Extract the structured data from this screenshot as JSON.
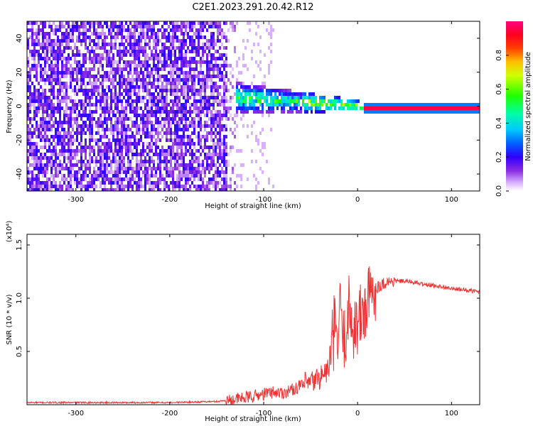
{
  "figure": {
    "title": "C2E1.2023.291.20.42.R12"
  },
  "chart_data": [
    {
      "type": "heatmap",
      "panel": "top",
      "xlabel": "Height of straight line (km)",
      "ylabel": "Frequency (Hz)",
      "xlim": [
        -352,
        130
      ],
      "ylim": [
        -50,
        50
      ],
      "x_ticks": [
        -300,
        -200,
        -100,
        0,
        100
      ],
      "y_ticks": [
        -40,
        -20,
        0,
        20,
        40
      ],
      "grid": false,
      "colorbar": {
        "label": "Normalized spectral amplitude",
        "range": [
          0,
          1
        ],
        "ticks": [
          0.0,
          0.2,
          0.4,
          0.6,
          0.8
        ],
        "colormap": [
          "#ffffff",
          "#a060ff",
          "#6000e0",
          "#0000ff",
          "#00c0ff",
          "#00ff80",
          "#40ff00",
          "#ffff00",
          "#ff8000",
          "#ff0000",
          "#ff0080"
        ]
      },
      "description_regions": [
        {
          "x_range": [
            -352,
            -140
          ],
          "freq_range": [
            -50,
            50
          ],
          "amplitude": 0.12
        },
        {
          "x_range": [
            -140,
            -20
          ],
          "freq_range": [
            -6,
            14
          ],
          "amplitude": 0.35
        },
        {
          "x_range": [
            -20,
            130
          ],
          "freq_range": [
            -1,
            1
          ],
          "amplitude": 0.9
        }
      ]
    },
    {
      "type": "line",
      "panel": "bottom",
      "xlabel": "Height of straight line (km)",
      "ylabel": "SNR (10 * v/v)",
      "y_multiplier": "(x10⁴)",
      "xlim": [
        -352,
        130
      ],
      "ylim": [
        0,
        1.6
      ],
      "x_ticks": [
        -300,
        -200,
        -100,
        0,
        100
      ],
      "y_ticks": [
        0.5,
        1.0,
        1.5
      ],
      "grid": false,
      "series": [
        {
          "color": "#ee3333",
          "x": [
            -352,
            -300,
            -250,
            -200,
            -150,
            -130,
            -110,
            -100,
            -90,
            -80,
            -70,
            -60,
            -50,
            -40,
            -30,
            -25,
            -20,
            -18,
            -15,
            -10,
            -5,
            0,
            10,
            20,
            30,
            40,
            50,
            60,
            70,
            80,
            90,
            100,
            110,
            120,
            130
          ],
          "y": [
            0.02,
            0.02,
            0.02,
            0.02,
            0.03,
            0.05,
            0.08,
            0.1,
            0.12,
            0.11,
            0.14,
            0.18,
            0.2,
            0.26,
            0.34,
            0.7,
            0.6,
            1.0,
            0.55,
            0.9,
            0.75,
            0.75,
            0.95,
            1.1,
            1.15,
            1.16,
            1.16,
            1.15,
            1.13,
            1.12,
            1.11,
            1.09,
            1.08,
            1.07,
            1.06
          ]
        }
      ]
    }
  ]
}
